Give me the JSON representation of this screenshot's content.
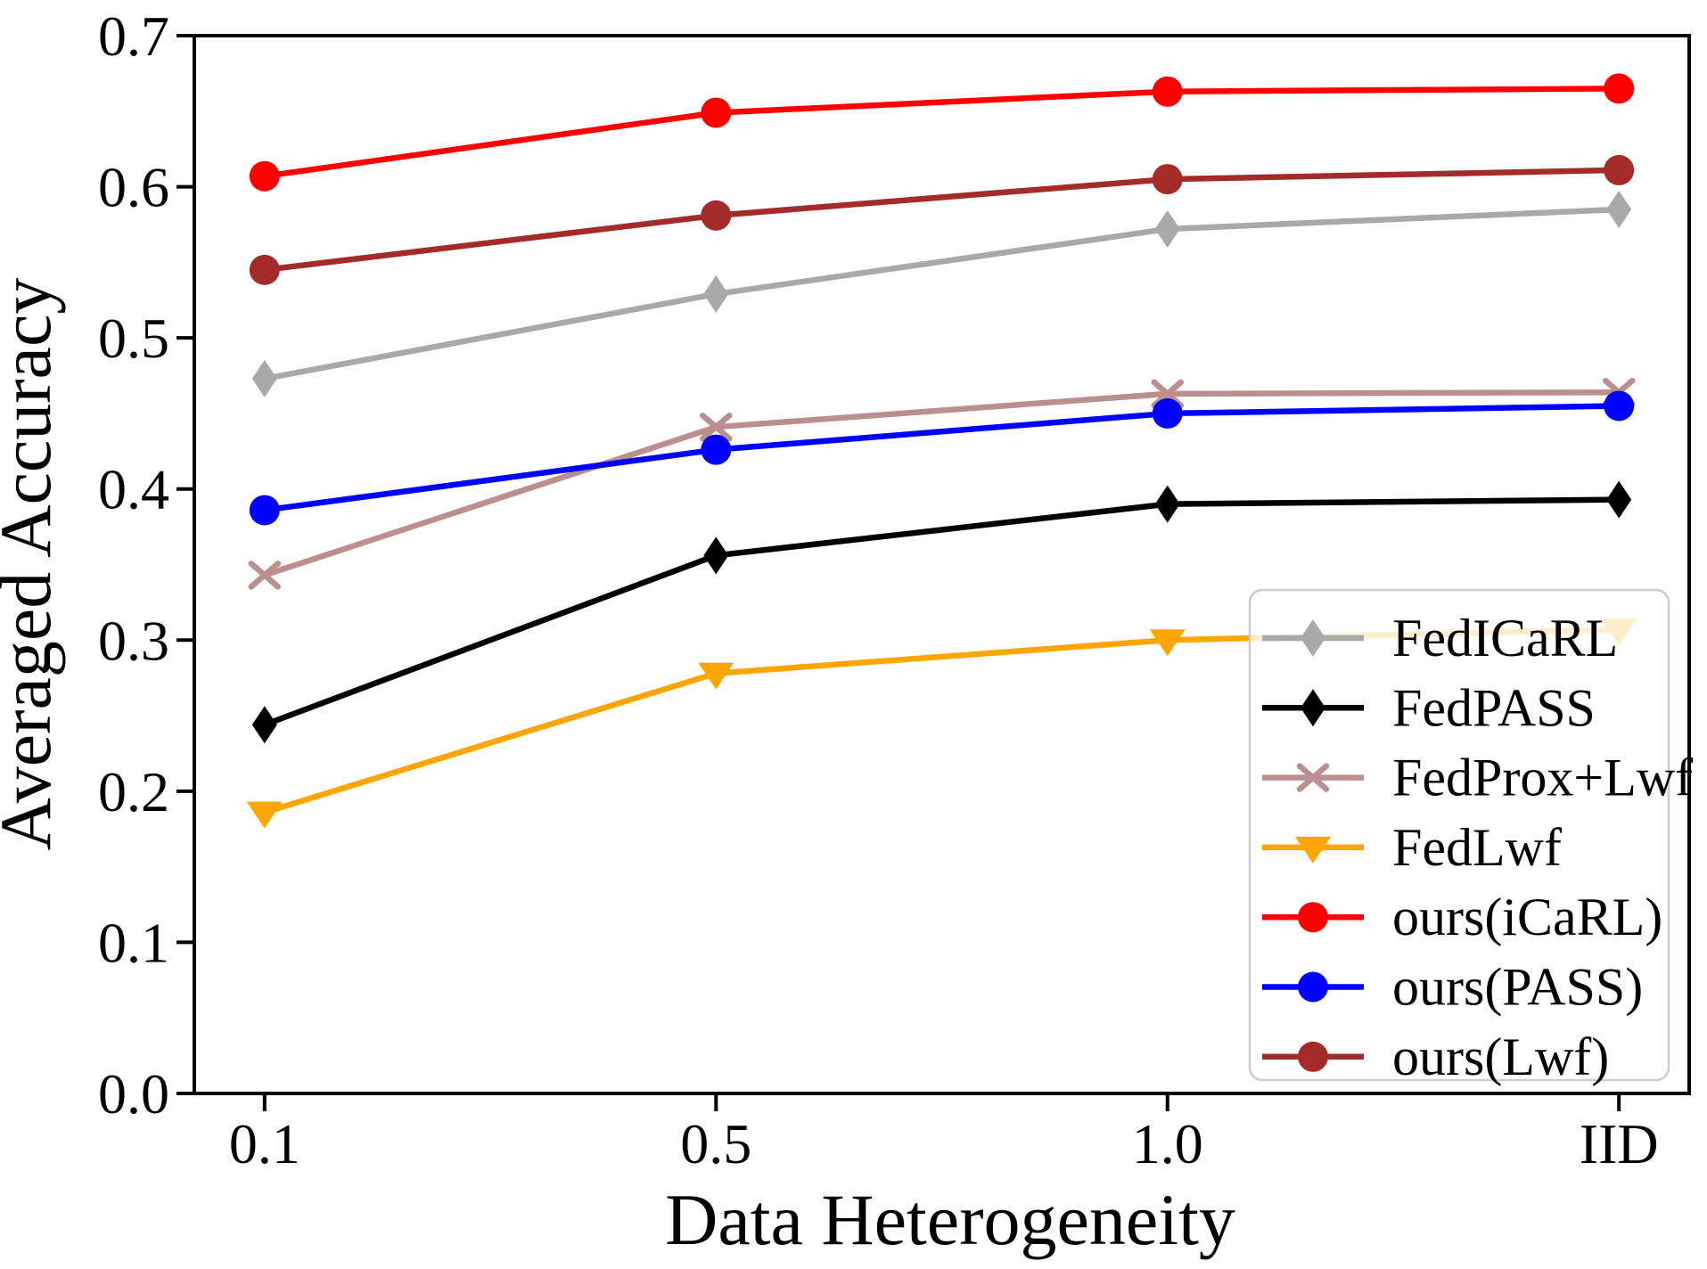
{
  "chart_data": {
    "type": "line",
    "title": "",
    "xlabel": "Data Heterogeneity",
    "ylabel": "Averaged Accuracy",
    "categories": [
      "0.1",
      "0.5",
      "1.0",
      "IID"
    ],
    "ylim": [
      0.0,
      0.7
    ],
    "yticks": [
      "0.0",
      "0.1",
      "0.2",
      "0.3",
      "0.4",
      "0.5",
      "0.6",
      "0.7"
    ],
    "grid": false,
    "legend_position": "lower right",
    "axis_color": "#000000",
    "legend_border_color": "#cccccc",
    "series": [
      {
        "name": "FedICaRL",
        "color": "#a9a9a9",
        "marker": "thin-diamond",
        "values": [
          0.473,
          0.529,
          0.572,
          0.585
        ]
      },
      {
        "name": "FedPASS",
        "color": "#000000",
        "marker": "thin-diamond",
        "values": [
          0.244,
          0.356,
          0.39,
          0.393
        ]
      },
      {
        "name": "FedProx+Lwf",
        "color": "#bc8f8f",
        "marker": "x",
        "values": [
          0.343,
          0.441,
          0.463,
          0.464
        ]
      },
      {
        "name": "FedLwf",
        "color": "#ffa500",
        "marker": "triangle-down",
        "values": [
          0.186,
          0.278,
          0.3,
          0.307
        ]
      },
      {
        "name": "ours(iCaRL)",
        "color": "#ff0000",
        "marker": "circle",
        "values": [
          0.607,
          0.649,
          0.663,
          0.665
        ]
      },
      {
        "name": "ours(PASS)",
        "color": "#0000ff",
        "marker": "circle",
        "values": [
          0.386,
          0.426,
          0.45,
          0.455
        ]
      },
      {
        "name": "ours(Lwf)",
        "color": "#a52a2a",
        "marker": "circle",
        "values": [
          0.545,
          0.581,
          0.605,
          0.611
        ]
      }
    ]
  }
}
